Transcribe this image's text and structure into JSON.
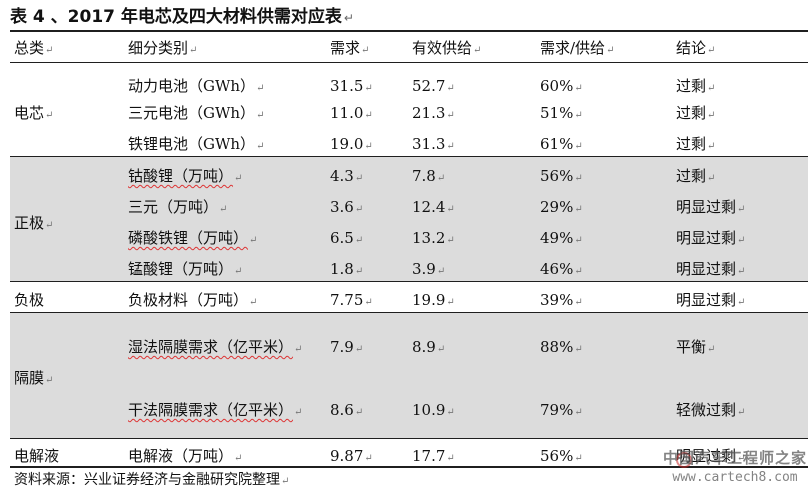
{
  "title": "表 4 、2017 年电芯及四大材料供需对应表",
  "mark": "↵",
  "headers": [
    "总类",
    "细分类别",
    "需求",
    "有效供给",
    "需求/供给",
    "结论"
  ],
  "rows": [
    {
      "cat": "",
      "sub": "动力电池（GWh）",
      "demand": "31.5",
      "supply": "52.7",
      "ratio": "60%",
      "conclusion": "过剩"
    },
    {
      "cat": "",
      "sub": "三元电池（GWh）",
      "demand": "11.0",
      "supply": "21.3",
      "ratio": "51%",
      "conclusion": "过剩"
    },
    {
      "cat": "",
      "sub": "铁锂电池（GWh）",
      "demand": "19.0",
      "supply": "31.3",
      "ratio": "61%",
      "conclusion": "过剩"
    },
    {
      "cat": "",
      "sub": "钴酸锂（万吨）",
      "demand": "4.3",
      "supply": "7.8",
      "ratio": "56%",
      "conclusion": "过剩"
    },
    {
      "cat": "",
      "sub": "三元（万吨）",
      "demand": "3.6",
      "supply": "12.4",
      "ratio": "29%",
      "conclusion": "明显过剩"
    },
    {
      "cat": "",
      "sub": "磷酸铁锂（万吨）",
      "demand": "6.5",
      "supply": "13.2",
      "ratio": "49%",
      "conclusion": "明显过剩"
    },
    {
      "cat": "",
      "sub": "锰酸锂（万吨）",
      "demand": "1.8",
      "supply": "3.9",
      "ratio": "46%",
      "conclusion": "明显过剩"
    },
    {
      "cat": "负极",
      "sub": "负极材料（万吨）",
      "demand": "7.75",
      "supply": "19.9",
      "ratio": "39%",
      "conclusion": "明显过剩"
    },
    {
      "cat": "",
      "sub": "湿法隔膜需求（亿平米）",
      "demand": "7.9",
      "supply": "8.9",
      "ratio": "88%",
      "conclusion": "平衡"
    },
    {
      "cat": "",
      "sub": "干法隔膜需求（亿平米）",
      "demand": "8.6",
      "supply": "10.9",
      "ratio": "79%",
      "conclusion": "轻微过剩"
    },
    {
      "cat": "电解液",
      "sub": "电解液（万吨）",
      "demand": "9.87",
      "supply": "17.7",
      "ratio": "56%",
      "conclusion": "明显过剩"
    }
  ],
  "groups": [
    {
      "name": "电芯"
    },
    {
      "name": "正极"
    },
    {
      "name": "隔膜"
    }
  ],
  "source": "资料来源：兴业证券经济与金融研究院整理",
  "watermark": {
    "cn": "中国汽车工程师之家",
    "url": "www.cartech8.com"
  }
}
